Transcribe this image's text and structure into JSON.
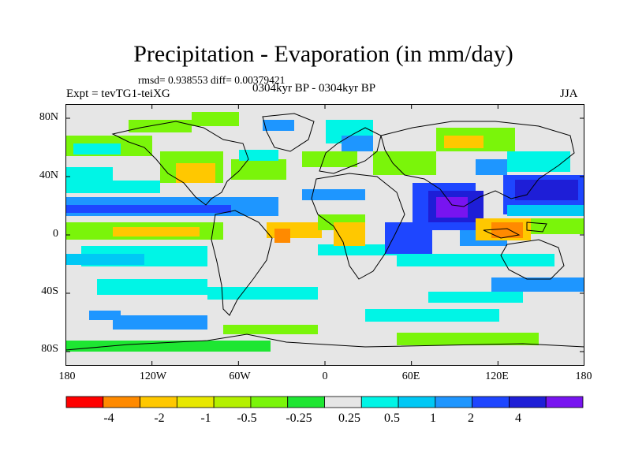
{
  "title": "Precipitation - Evaporation (in mm/day)",
  "stats": "rmsd= 0.938553  diff= 0.00379421",
  "period": "0304kyr BP - 0304kyr BP",
  "experiment": "Expt = tevTG1-teiXG",
  "season": "JJA",
  "map": {
    "projection": "cylindrical equidistant",
    "lat_ticks": [
      "80N",
      "40N",
      "0",
      "40S",
      "80S"
    ],
    "lon_ticks": [
      "180",
      "120W",
      "60W",
      "0",
      "60E",
      "120E",
      "180"
    ],
    "background_color": "#e6e6e6",
    "coastline_color": "#000000"
  },
  "colorbar": {
    "colors": [
      "#ff0000",
      "#ff8a00",
      "#ffc800",
      "#e8e800",
      "#b4f000",
      "#7af50a",
      "#1ee632",
      "#e6e6e6",
      "#00f5e6",
      "#00c8f5",
      "#1e96ff",
      "#1e46ff",
      "#1e1ed7",
      "#7814f0"
    ],
    "labels": [
      "-4",
      "-2",
      "-1",
      "-0.5",
      "-0.25",
      "0.25",
      "0.5",
      "1",
      "2",
      "4"
    ]
  }
}
